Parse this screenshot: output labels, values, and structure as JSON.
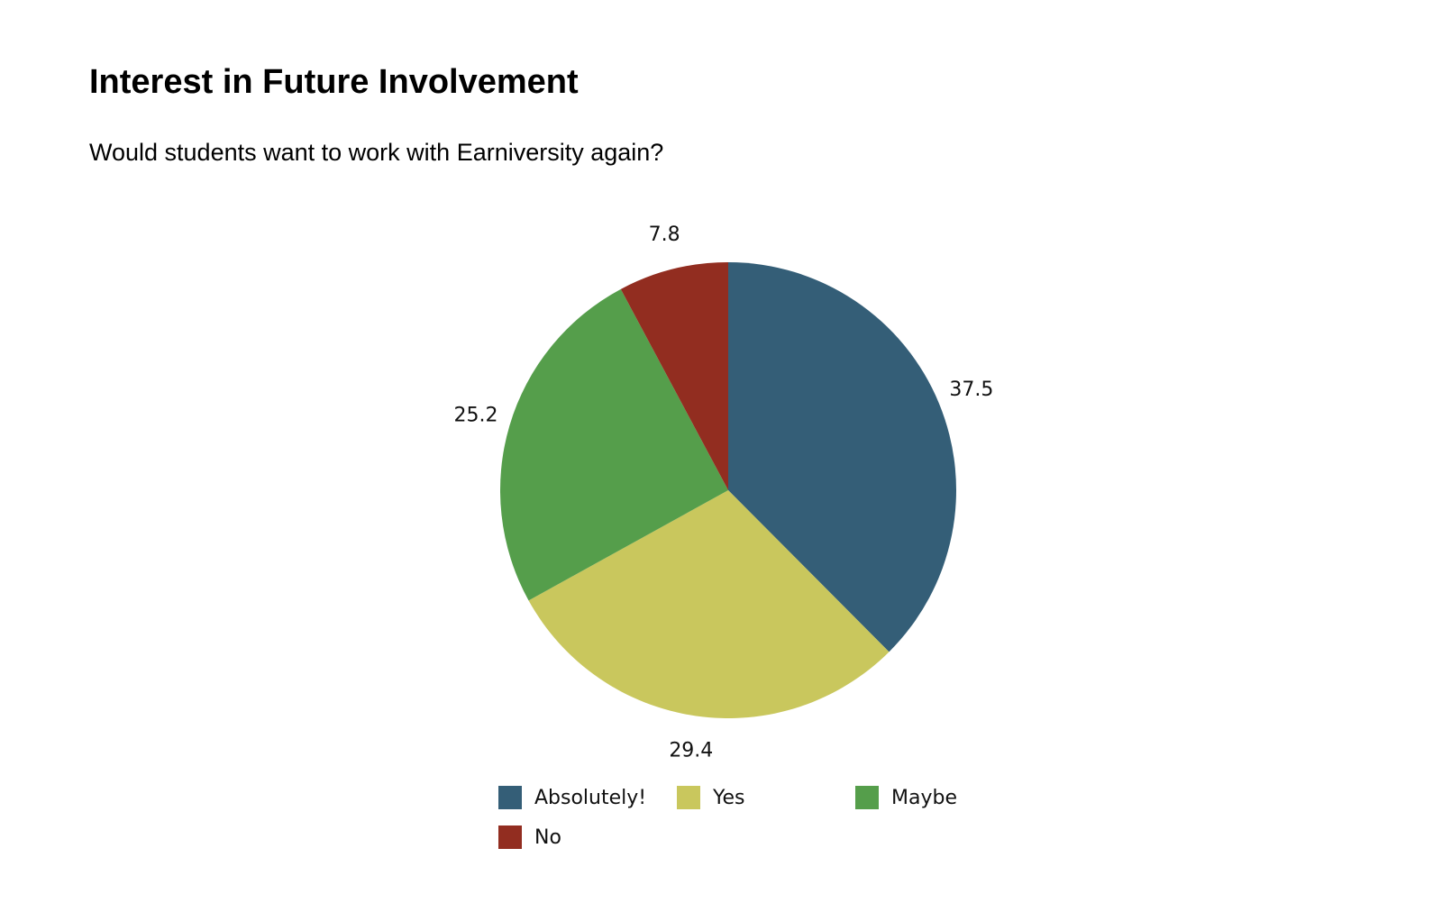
{
  "chart_data": {
    "type": "pie",
    "title": "Interest in Future Involvement",
    "subtitle": "Would students want to work with Earniversity again?",
    "categories": [
      "Absolutely!",
      "Yes",
      "Maybe",
      "No"
    ],
    "values": [
      37.5,
      29.4,
      25.2,
      7.8
    ],
    "labels": [
      "37.5",
      "29.4",
      "25.2",
      "7.8"
    ],
    "colors": [
      "#345e77",
      "#c9c75d",
      "#559e4b",
      "#922d20"
    ],
    "legend_position": "bottom",
    "start_angle": "top",
    "direction": "clockwise"
  }
}
